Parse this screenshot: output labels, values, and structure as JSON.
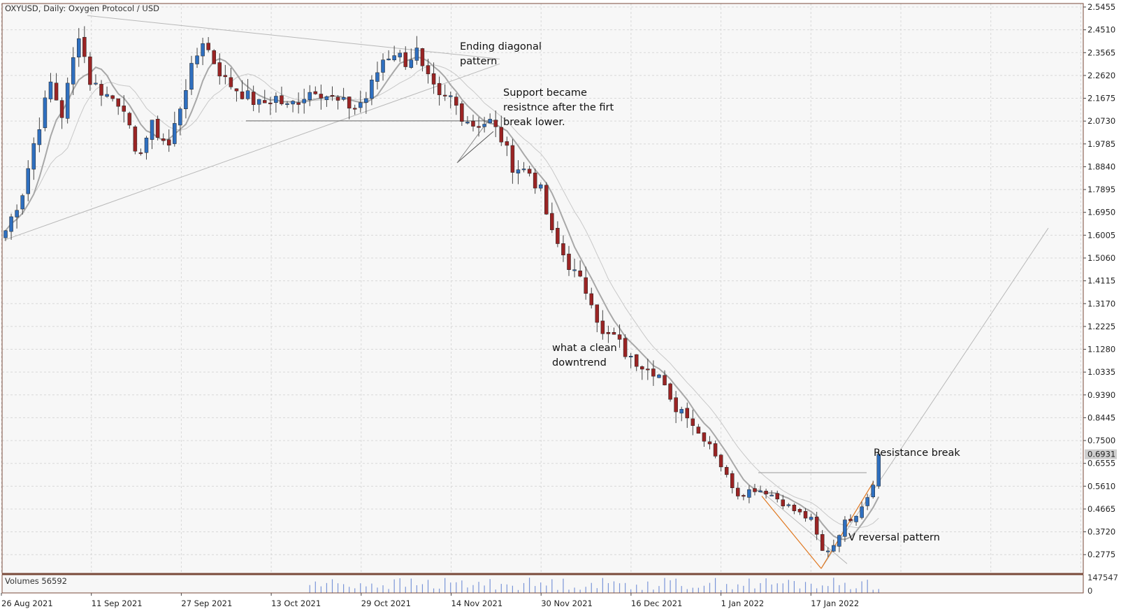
{
  "chart_header": "OXYUSD, Daily:  Oxygen Protocol / USD",
  "volume_header": "Volumes 56592",
  "chart_data": {
    "type": "candlestick",
    "symbol": "OXYUSD",
    "timeframe": "Daily",
    "instrument": "Oxygen Protocol / USD",
    "ylim": [
      0.2,
      2.56
    ],
    "grid": true,
    "y_ticks": [
      "2.5455",
      "2.4510",
      "2.3565",
      "2.2620",
      "2.1675",
      "2.0730",
      "1.9785",
      "1.8840",
      "1.7895",
      "1.6950",
      "1.6005",
      "1.5060",
      "1.4115",
      "1.3170",
      "1.2225",
      "1.1280",
      "1.0335",
      "0.9390",
      "0.8445",
      "0.7500",
      "0.6555",
      "0.5610",
      "0.4665",
      "0.3720",
      "0.2775"
    ],
    "x_ticks": [
      "26 Aug 2021",
      "11 Sep 2021",
      "27 Sep 2021",
      "13 Oct 2021",
      "29 Oct 2021",
      "14 Nov 2021",
      "30 Nov 2021",
      "16 Dec 2021",
      "1 Jan 2022",
      "17 Jan 2022"
    ],
    "current_price_label": "0.6931",
    "volume_axis_labels": [
      "147547",
      "0"
    ],
    "close_path": [
      [
        0,
        1.62
      ],
      [
        3,
        1.78
      ],
      [
        5,
        1.98
      ],
      [
        8,
        2.23
      ],
      [
        10,
        2.1
      ],
      [
        13,
        2.44
      ],
      [
        15,
        2.24
      ],
      [
        18,
        2.18
      ],
      [
        21,
        2.14
      ],
      [
        23,
        1.92
      ],
      [
        26,
        2.05
      ],
      [
        29,
        1.97
      ],
      [
        32,
        2.22
      ],
      [
        35,
        2.41
      ],
      [
        37,
        2.32
      ],
      [
        39,
        2.24
      ],
      [
        42,
        2.19
      ],
      [
        45,
        2.14
      ],
      [
        48,
        2.17
      ],
      [
        50,
        2.13
      ],
      [
        53,
        2.18
      ],
      [
        55,
        2.21
      ],
      [
        59,
        2.15
      ],
      [
        62,
        2.13
      ],
      [
        64,
        2.17
      ],
      [
        67,
        2.33
      ],
      [
        69,
        2.36
      ],
      [
        71,
        2.32
      ],
      [
        73,
        2.36
      ],
      [
        74,
        2.28
      ],
      [
        77,
        2.16
      ],
      [
        79,
        2.17
      ],
      [
        81,
        2.1
      ],
      [
        83,
        2.06
      ],
      [
        86,
        2.07
      ],
      [
        88,
        2.0
      ],
      [
        90,
        1.89
      ],
      [
        93,
        1.86
      ],
      [
        95,
        1.78
      ],
      [
        97,
        1.6
      ],
      [
        99,
        1.52
      ],
      [
        101,
        1.44
      ],
      [
        104,
        1.34
      ],
      [
        106,
        1.18
      ],
      [
        108,
        1.18
      ],
      [
        111,
        1.08
      ],
      [
        114,
        1.07
      ],
      [
        116,
        1.02
      ],
      [
        118,
        0.9
      ],
      [
        121,
        0.87
      ],
      [
        123,
        0.78
      ],
      [
        125,
        0.74
      ],
      [
        128,
        0.6
      ],
      [
        130,
        0.53
      ],
      [
        133,
        0.55
      ],
      [
        135,
        0.54
      ],
      [
        137,
        0.51
      ],
      [
        140,
        0.46
      ],
      [
        143,
        0.42
      ],
      [
        145,
        0.29
      ],
      [
        146,
        0.3
      ],
      [
        147,
        0.32
      ],
      [
        148,
        0.37
      ],
      [
        149,
        0.41
      ],
      [
        151,
        0.45
      ],
      [
        153,
        0.52
      ],
      [
        154,
        0.58
      ],
      [
        155,
        0.69
      ]
    ],
    "annotations": [
      {
        "name": "ending-diagonal",
        "lines": [
          "Ending diagonal",
          "pattern"
        ]
      },
      {
        "name": "support-resistance",
        "lines": [
          "Support became",
          "resistnce after the firt",
          "break lower."
        ]
      },
      {
        "name": "clean-downtrend",
        "lines": [
          "what a clean",
          "downtrend"
        ]
      },
      {
        "name": "resistance-break",
        "lines": [
          "Resistance break"
        ]
      },
      {
        "name": "v-reversal",
        "lines": [
          "V reversal pattern"
        ]
      }
    ]
  },
  "colors": {
    "background": "#ffffff",
    "plot_bg": "#f7f7f7",
    "grid": "#d8d8d8",
    "bull_body": "#2f6fbf",
    "bear_body": "#9a2424",
    "wick": "#444444",
    "ma_fast": "#a8a8a8",
    "ma_slow": "#c8c8c8",
    "trendline": "#b8b8b8",
    "support": "#666666",
    "v_lines": "#e07820",
    "volume": "#7a95d8",
    "frame": "#7a4a3a"
  }
}
